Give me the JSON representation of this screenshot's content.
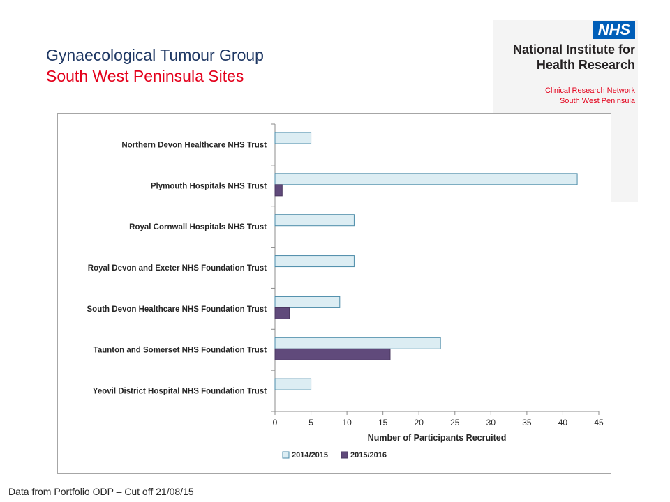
{
  "header": {
    "title": "Gynaecological Tumour Group",
    "subtitle": "South West Peninsula Sites"
  },
  "logo": {
    "badge": "NHS",
    "org_line1": "National Institute for",
    "org_line2": "Health Research",
    "network_line1": "Clinical Research Network",
    "network_line2": "South West Peninsula"
  },
  "footer": {
    "note": "Data from Portfolio ODP – Cut off 21/08/15"
  },
  "chart_data": {
    "type": "bar",
    "orientation": "horizontal",
    "categories": [
      "Northern Devon Healthcare NHS Trust",
      "Plymouth Hospitals NHS Trust",
      "Royal Cornwall Hospitals NHS Trust",
      "Royal Devon and Exeter NHS Foundation Trust",
      "South Devon Healthcare NHS Foundation Trust",
      "Taunton and Somerset NHS Foundation Trust",
      "Yeovil District Hospital NHS Foundation Trust"
    ],
    "series": [
      {
        "name": "2014/2015",
        "color": "#dcedf3",
        "stroke": "#4b8ba8",
        "values": [
          5,
          42,
          11,
          11,
          9,
          23,
          5
        ]
      },
      {
        "name": "2015/2016",
        "color": "#604a7b",
        "stroke": "#4a3860",
        "values": [
          0,
          1,
          0,
          0,
          2,
          16,
          0
        ]
      }
    ],
    "xlabel": "Number of Participants Recruited",
    "xlim": [
      0,
      45
    ],
    "xticks": [
      0,
      5,
      10,
      15,
      20,
      25,
      30,
      35,
      40,
      45
    ],
    "grid": false,
    "legend_position": "bottom"
  }
}
